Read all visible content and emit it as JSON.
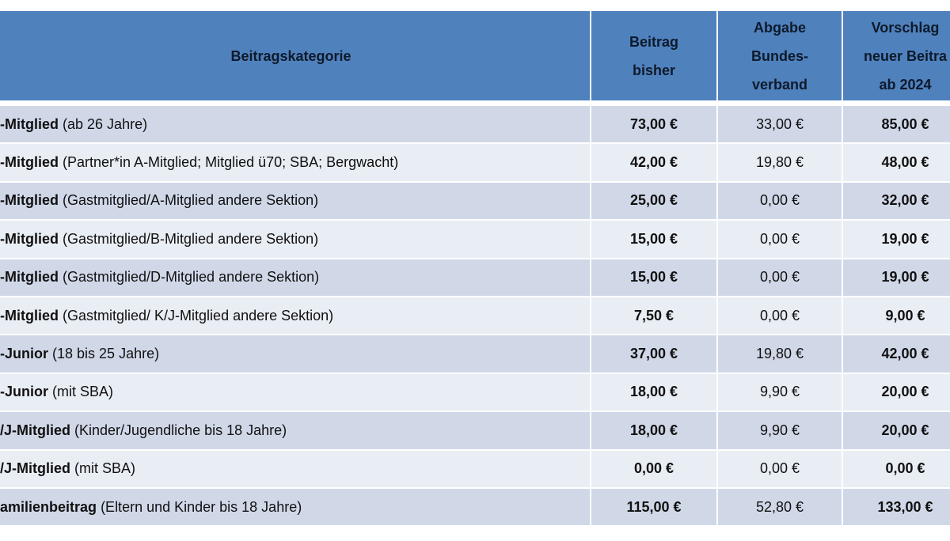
{
  "table": {
    "header": [
      [
        "Beitragskategorie"
      ],
      [
        "Beitrag",
        "bisher"
      ],
      [
        "Abgabe",
        "Bundes-",
        "verband"
      ],
      [
        "Vorschlag",
        "neuer Beitra",
        "ab 2024"
      ]
    ],
    "rows": [
      [
        "-Mitglied",
        "(ab 26 Jahre)",
        "73,00 €",
        "33,00 €",
        "85,00 €"
      ],
      [
        "-Mitglied",
        "(Partner*in A-Mitglied; Mitglied ü70; SBA; Bergwacht)",
        "42,00 €",
        "19,80 €",
        "48,00 €"
      ],
      [
        "-Mitglied",
        "(Gastmitglied/A-Mitglied andere Sektion)",
        "25,00 €",
        "0,00 €",
        "32,00 €"
      ],
      [
        "-Mitglied",
        "(Gastmitglied/B-Mitglied andere Sektion)",
        "15,00 €",
        "0,00 €",
        "19,00 €"
      ],
      [
        "-Mitglied",
        "(Gastmitglied/D-Mitglied andere Sektion)",
        "15,00 €",
        "0,00 €",
        "19,00 €"
      ],
      [
        "-Mitglied",
        "(Gastmitglied/ K/J-Mitglied andere Sektion)",
        "7,50 €",
        "0,00 €",
        "9,00 €"
      ],
      [
        "-Junior",
        "(18 bis 25 Jahre)",
        "37,00 €",
        "19,80 €",
        "42,00 €"
      ],
      [
        "-Junior",
        "(mit SBA)",
        "18,00 €",
        "9,90 €",
        "20,00 €"
      ],
      [
        "/J-Mitglied",
        "(Kinder/Jugendliche bis 18 Jahre)",
        "18,00 €",
        "9,90 €",
        "20,00 €"
      ],
      [
        "/J-Mitglied",
        "(mit SBA)",
        "0,00 €",
        "0,00 €",
        "0,00 €"
      ],
      [
        "amilienbeitrag",
        "(Eltern und Kinder bis 18 Jahre)",
        "115,00 €",
        "52,80 €",
        "133,00 €"
      ]
    ]
  }
}
